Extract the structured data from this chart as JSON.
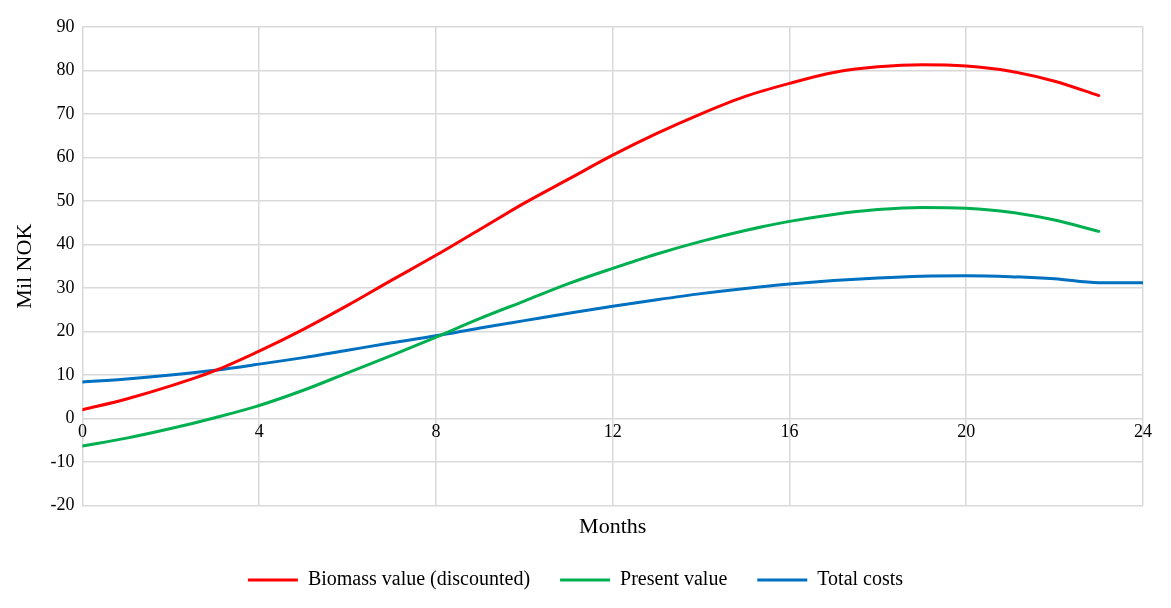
{
  "chart_data": {
    "type": "line",
    "xlabel": "Months",
    "ylabel": "Mil NOK",
    "xlim": [
      0,
      24
    ],
    "xticks": [
      0,
      4,
      8,
      12,
      16,
      20,
      24
    ],
    "ylim": [
      -20,
      90
    ],
    "yticks": [
      -20,
      -10,
      0,
      10,
      20,
      30,
      40,
      50,
      60,
      70,
      80,
      90
    ],
    "grid": true,
    "legend": "bottom",
    "marker": "none",
    "line_style": "solid",
    "series": [
      {
        "name": "Biomass value (discounted)",
        "color": "#ff0000",
        "x": [
          0,
          1,
          2,
          3,
          4,
          5,
          6,
          7,
          8,
          9,
          10,
          11,
          12,
          13,
          14,
          15,
          16,
          17,
          18,
          19,
          20,
          21,
          22,
          23
        ],
        "values": [
          2,
          4.5,
          7.5,
          11,
          15.5,
          20.5,
          26,
          31.8,
          37.5,
          43.5,
          49.5,
          55,
          60.5,
          65.5,
          70,
          74,
          77,
          79.5,
          80.8,
          81.3,
          81,
          79.8,
          77.5,
          74.2
        ]
      },
      {
        "name": "Present value",
        "color": "#00b050",
        "x": [
          0,
          1,
          2,
          3,
          4,
          5,
          6,
          7,
          8,
          9,
          10,
          11,
          12,
          13,
          14,
          15,
          16,
          17,
          18,
          19,
          20,
          21,
          22,
          23
        ],
        "values": [
          -6.3,
          -4.5,
          -2.3,
          0.2,
          3,
          6.5,
          10.5,
          14.5,
          18.7,
          23,
          27,
          31,
          34.5,
          37.8,
          40.7,
          43.2,
          45.3,
          46.9,
          48,
          48.5,
          48.3,
          47.4,
          45.6,
          43
        ]
      },
      {
        "name": "Total costs",
        "color": "#0070c0",
        "x": [
          0,
          1,
          2,
          3,
          4,
          5,
          6,
          7,
          8,
          9,
          10,
          11,
          12,
          13,
          14,
          15,
          16,
          17,
          18,
          19,
          20,
          21,
          22,
          23,
          24
        ],
        "values": [
          8.4,
          9.1,
          10,
          11.1,
          12.5,
          14,
          15.7,
          17.4,
          19,
          20.8,
          22.5,
          24.2,
          25.8,
          27.3,
          28.7,
          29.9,
          30.9,
          31.7,
          32.3,
          32.7,
          32.8,
          32.6,
          32.1,
          31.2,
          31.2
        ]
      }
    ]
  }
}
